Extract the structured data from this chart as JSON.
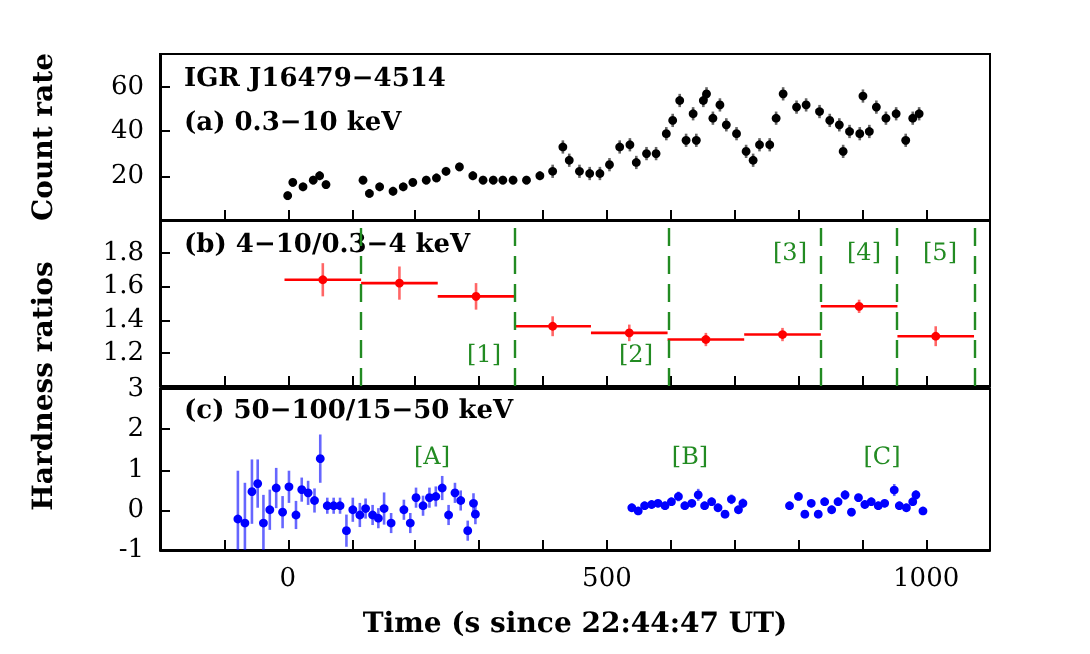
{
  "chart_data": [
    {
      "type": "scatter",
      "title": "IGR J16479−4514",
      "subtitle": "(a) 0.3−10 keV",
      "ylabel": "Count rate",
      "marker": "circle",
      "tick_labels": "y",
      "xlim": [
        -200,
        1100
      ],
      "ylim": [
        0,
        75
      ],
      "yticks": [
        20,
        40,
        60
      ],
      "xticks": [
        {
          "value": -200,
          "label": null
        },
        {
          "value": -100,
          "label": null
        },
        {
          "value": 0,
          "label": null
        },
        {
          "value": 100,
          "label": null
        },
        {
          "value": 200,
          "label": null
        },
        {
          "value": 300,
          "label": null
        },
        {
          "value": 400,
          "label": null
        },
        {
          "value": 500,
          "label": null
        },
        {
          "value": 600,
          "label": null
        },
        {
          "value": 700,
          "label": null
        },
        {
          "value": 800,
          "label": null
        },
        {
          "value": 900,
          "label": null
        },
        {
          "value": 1000,
          "label": null
        }
      ],
      "x": [
        0,
        8,
        24,
        40,
        50,
        60,
        118,
        128,
        144,
        165,
        181,
        196,
        217,
        233,
        248,
        269,
        290,
        306,
        322,
        337,
        353,
        374,
        395,
        415,
        431,
        441,
        457,
        473,
        489,
        504,
        520,
        536,
        546,
        562,
        577,
        593,
        603,
        614,
        624,
        635,
        640,
        651,
        656,
        666,
        677,
        687,
        703,
        718,
        729,
        739,
        755,
        765,
        776,
        797,
        812,
        833,
        849,
        864,
        870,
        880,
        896,
        901,
        911,
        922,
        937,
        953,
        968,
        979,
        989
      ],
      "series": [
        {
          "color": "#000000",
          "values": [
            11,
            17,
            15,
            18,
            20,
            16,
            18,
            12,
            15,
            13,
            15,
            17,
            18,
            19,
            22,
            24,
            20,
            18,
            18,
            18,
            18,
            18,
            20,
            22,
            33,
            27,
            22,
            21,
            21,
            25,
            33,
            34,
            26,
            30,
            30,
            39,
            45,
            54,
            36,
            48,
            36,
            54,
            57,
            46,
            52,
            43,
            39,
            31,
            27,
            34,
            34,
            46,
            57,
            51,
            52,
            49,
            45,
            43,
            31,
            40,
            39,
            56,
            40,
            51,
            46,
            48,
            36,
            46,
            48
          ],
          "errors": [
            2,
            2,
            2,
            2,
            2,
            2,
            2,
            2,
            2,
            2,
            2,
            2,
            2,
            2,
            2,
            2,
            2,
            2,
            2,
            2,
            2,
            2,
            2,
            3,
            3,
            3,
            3,
            3,
            3,
            3,
            3,
            3,
            3,
            3,
            3,
            3,
            3,
            3,
            3,
            3,
            3,
            3,
            3,
            3,
            3,
            3,
            3,
            3,
            3,
            3,
            3,
            3,
            3,
            3,
            3,
            3,
            3,
            3,
            3,
            3,
            3,
            3,
            3,
            3,
            3,
            3,
            3,
            3,
            3
          ]
        }
      ]
    },
    {
      "type": "scatter",
      "title": "(b) 4−10/0.3−4 keV",
      "ylabel": "Hardness ratios",
      "marker": "circle",
      "tick_labels": "y",
      "xlim": [
        -200,
        1100
      ],
      "ylim": [
        1,
        2
      ],
      "yticks": [
        1.2,
        1.4,
        1.6,
        1.8
      ],
      "xticks": [
        {
          "value": -200,
          "label": null
        },
        {
          "value": -100,
          "label": null
        },
        {
          "value": 0,
          "label": null
        },
        {
          "value": 100,
          "label": null
        },
        {
          "value": 200,
          "label": null
        },
        {
          "value": 300,
          "label": null
        },
        {
          "value": 400,
          "label": null
        },
        {
          "value": 500,
          "label": null
        },
        {
          "value": 600,
          "label": null
        },
        {
          "value": 700,
          "label": null
        },
        {
          "value": 800,
          "label": null
        },
        {
          "value": 900,
          "label": null
        },
        {
          "value": 1000,
          "label": null
        }
      ],
      "x": [
        55,
        175,
        295,
        415,
        535,
        655,
        775,
        895,
        1015
      ],
      "series": [
        {
          "color": "#ff0000",
          "values": [
            1.64,
            1.62,
            1.54,
            1.36,
            1.32,
            1.28,
            1.31,
            1.48,
            1.3
          ],
          "errors": [
            0.1,
            0.1,
            0.08,
            0.06,
            0.05,
            0.04,
            0.04,
            0.04,
            0.06
          ],
          "xerrors": [
            60,
            60,
            60,
            60,
            60,
            60,
            60,
            60,
            60
          ]
        }
      ],
      "ref_lines": [
        {
          "axis": "x",
          "value": 115,
          "color": "#228b22",
          "line_style": "dashed"
        },
        {
          "axis": "x",
          "value": 355,
          "color": "#228b22",
          "line_style": "dashed"
        },
        {
          "axis": "x",
          "value": 595,
          "color": "#228b22",
          "line_style": "dashed"
        },
        {
          "axis": "x",
          "value": 835,
          "color": "#228b22",
          "line_style": "dashed"
        },
        {
          "axis": "x",
          "value": 955,
          "color": "#228b22",
          "line_style": "dashed"
        },
        {
          "axis": "x",
          "value": 1075,
          "color": "#228b22",
          "line_style": "dashed"
        }
      ],
      "annotations": [
        "[1]",
        "[2]",
        "[3]",
        "[4]",
        "[5]"
      ]
    },
    {
      "type": "scatter",
      "title": "(c) 50−100/15−50 keV",
      "xlabel": "Time (s since 22:44:47 UT)",
      "marker": "circle",
      "xlim": [
        -200,
        1100
      ],
      "ylim": [
        -1,
        3
      ],
      "yticks": [
        -1,
        0,
        1,
        2,
        3
      ],
      "xticks": [
        {
          "value": -200,
          "label": null
        },
        {
          "value": -100,
          "label": null
        },
        0,
        {
          "value": 100,
          "label": null
        },
        {
          "value": 200,
          "label": null
        },
        {
          "value": 300,
          "label": null
        },
        {
          "value": 400,
          "label": null
        },
        500,
        {
          "value": 600,
          "label": null
        },
        {
          "value": 700,
          "label": null
        },
        {
          "value": 800,
          "label": null
        },
        {
          "value": 900,
          "label": null
        },
        1000
      ],
      "x": [
        -78,
        -67,
        -56,
        -47,
        -38,
        -28,
        -18,
        -8,
        2,
        13,
        22,
        32,
        42,
        51,
        62,
        72,
        82,
        92,
        102,
        113,
        122,
        133,
        142,
        151,
        162,
        182,
        192,
        201,
        212,
        222,
        232,
        242,
        252,
        262,
        271,
        282,
        291,
        294,
        539,
        549,
        559,
        570,
        580,
        591,
        601,
        612,
        622,
        633,
        643,
        653,
        664,
        674,
        685,
        695,
        706,
        713,
        786,
        800,
        810,
        820,
        831,
        841,
        852,
        862,
        873,
        883,
        894,
        904,
        914,
        925,
        935,
        950,
        958,
        969,
        979,
        984,
        995
      ],
      "series": [
        {
          "color": "#0000ff",
          "values": [
            -0.23,
            -0.33,
            0.45,
            0.65,
            -0.33,
            0,
            0.54,
            -0.06,
            0.57,
            -0.13,
            0.5,
            0.42,
            0.23,
            1.27,
            0.1,
            0.1,
            0.1,
            -0.52,
            0,
            -0.13,
            0.03,
            -0.13,
            -0.21,
            0.03,
            -0.33,
            0,
            -0.33,
            0.3,
            0.1,
            0.3,
            0.33,
            0.54,
            -0.13,
            0.42,
            0.23,
            -0.52,
            0.16,
            -0.11,
            0.05,
            -0.03,
            0.1,
            0.13,
            0.16,
            0.1,
            0.2,
            0.33,
            0.1,
            0.16,
            0.37,
            0.1,
            0.2,
            0.05,
            -0.11,
            0.26,
            0,
            0.16,
            0.1,
            0.33,
            -0.11,
            0.16,
            -0.11,
            0.2,
            0,
            0.2,
            0.37,
            -0.06,
            0.3,
            0.13,
            0.2,
            0.1,
            0.16,
            0.49,
            0.1,
            0.05,
            0.2,
            0.37,
            -0.03
          ],
          "errors": [
            1.2,
            1,
            0.8,
            0.6,
            0.7,
            0.5,
            0.5,
            0.4,
            0.4,
            0.35,
            0.3,
            0.3,
            0.3,
            0.6,
            0.2,
            0.2,
            0.2,
            0.4,
            0.3,
            0.3,
            0.25,
            0.25,
            0.25,
            0.4,
            0.25,
            0.25,
            0.25,
            0.25,
            0.25,
            0.25,
            0.25,
            0.3,
            0.25,
            0.25,
            0.25,
            0.25,
            0.25,
            0.25,
            0.1,
            0.1,
            0.1,
            0.1,
            0.1,
            0.1,
            0.1,
            0.12,
            0.1,
            0.1,
            0.15,
            0.1,
            0.1,
            0.1,
            0.1,
            0.12,
            0.1,
            0.12,
            0.1,
            0.1,
            0.1,
            0.1,
            0.1,
            0.1,
            0.1,
            0.1,
            0.12,
            0.1,
            0.1,
            0.1,
            0.1,
            0.1,
            0.1,
            0.15,
            0.1,
            0.1,
            0.1,
            0.12,
            0.1
          ]
        }
      ],
      "annotations": [
        "[A]",
        "[B]",
        "[C]"
      ]
    }
  ]
}
